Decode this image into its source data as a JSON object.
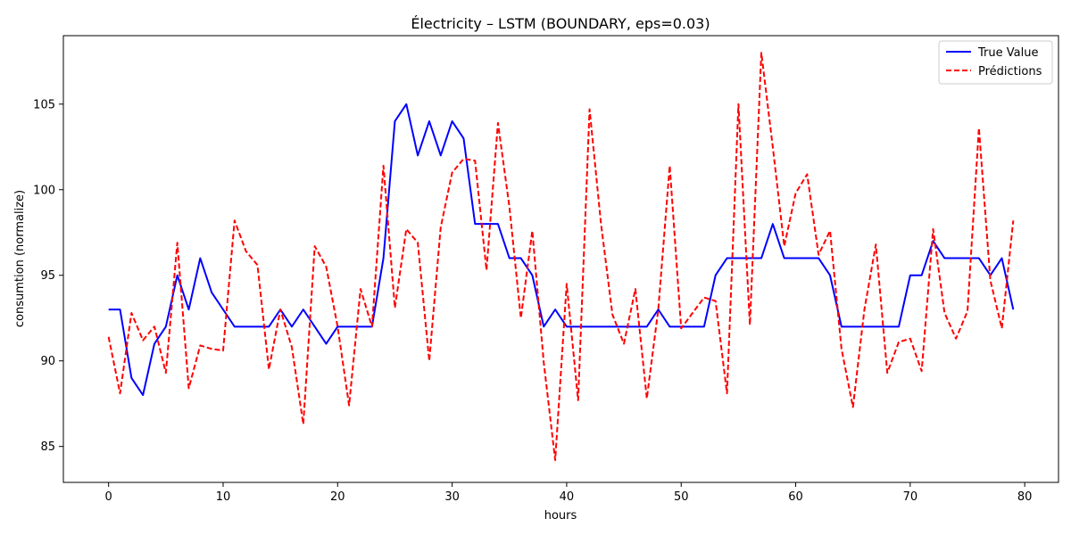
{
  "chart_data": {
    "type": "line",
    "title": "Électricity – LSTM (BOUNDARY, eps=0.03)",
    "xlabel": "hours",
    "ylabel": "consumtion (normalize)",
    "xlim": [
      -3.95,
      82.95
    ],
    "ylim": [
      82.9,
      109.0
    ],
    "xticks": [
      0,
      10,
      20,
      30,
      40,
      50,
      60,
      70,
      80
    ],
    "yticks": [
      85,
      90,
      95,
      100,
      105
    ],
    "grid": false,
    "legend_position": "top-right",
    "x": [
      0,
      1,
      2,
      3,
      4,
      5,
      6,
      7,
      8,
      9,
      10,
      11,
      12,
      13,
      14,
      15,
      16,
      17,
      18,
      19,
      20,
      21,
      22,
      23,
      24,
      25,
      26,
      27,
      28,
      29,
      30,
      31,
      32,
      33,
      34,
      35,
      36,
      37,
      38,
      39,
      40,
      41,
      42,
      43,
      44,
      45,
      46,
      47,
      48,
      49,
      50,
      51,
      52,
      53,
      54,
      55,
      56,
      57,
      58,
      59,
      60,
      61,
      62,
      63,
      64,
      65,
      66,
      67,
      68,
      69,
      70,
      71,
      72,
      73,
      74,
      75,
      76,
      77,
      78,
      79
    ],
    "series": [
      {
        "name": "True Value",
        "color": "#0000ff",
        "style": "solid",
        "values": [
          93,
          93,
          89,
          88,
          91,
          92,
          95,
          93,
          96,
          94,
          93,
          92,
          92,
          92,
          92,
          93,
          92,
          93,
          92,
          91,
          92,
          92,
          92,
          92,
          96,
          104,
          105,
          102,
          104,
          102,
          104,
          103,
          98,
          98,
          98,
          96,
          96,
          95,
          92,
          93,
          92,
          92,
          92,
          92,
          92,
          92,
          92,
          92,
          93,
          92,
          92,
          92,
          92,
          95,
          96,
          96,
          96,
          96,
          98,
          96,
          96,
          96,
          96,
          95,
          92,
          92,
          92,
          92,
          92,
          92,
          95,
          95,
          97,
          96,
          96,
          96,
          96,
          95,
          96,
          93
        ]
      },
      {
        "name": "Prédictions",
        "color": "#ff0000",
        "style": "dashed",
        "values": [
          91.4,
          88.1,
          92.8,
          91.2,
          92.0,
          89.3,
          96.9,
          88.4,
          90.9,
          90.7,
          90.6,
          98.2,
          96.4,
          95.6,
          89.5,
          93.0,
          90.8,
          86.3,
          96.7,
          95.5,
          92.0,
          87.4,
          94.2,
          92.0,
          101.4,
          93.1,
          97.7,
          96.9,
          90.0,
          97.8,
          101.0,
          101.8,
          101.7,
          95.3,
          103.9,
          99.0,
          92.5,
          97.6,
          89.9,
          84.2,
          94.5,
          87.7,
          104.7,
          98.0,
          92.7,
          91.0,
          94.2,
          87.8,
          93.0,
          101.4,
          91.9,
          92.8,
          93.7,
          93.5,
          88.1,
          105.0,
          92.1,
          108.0,
          102.5,
          96.7,
          99.8,
          100.9,
          96.2,
          97.6,
          90.7,
          87.3,
          93.0,
          96.8,
          89.3,
          91.1,
          91.3,
          89.4,
          97.7,
          92.8,
          91.3,
          92.9,
          103.6,
          94.7,
          91.9,
          98.2
        ]
      }
    ]
  }
}
